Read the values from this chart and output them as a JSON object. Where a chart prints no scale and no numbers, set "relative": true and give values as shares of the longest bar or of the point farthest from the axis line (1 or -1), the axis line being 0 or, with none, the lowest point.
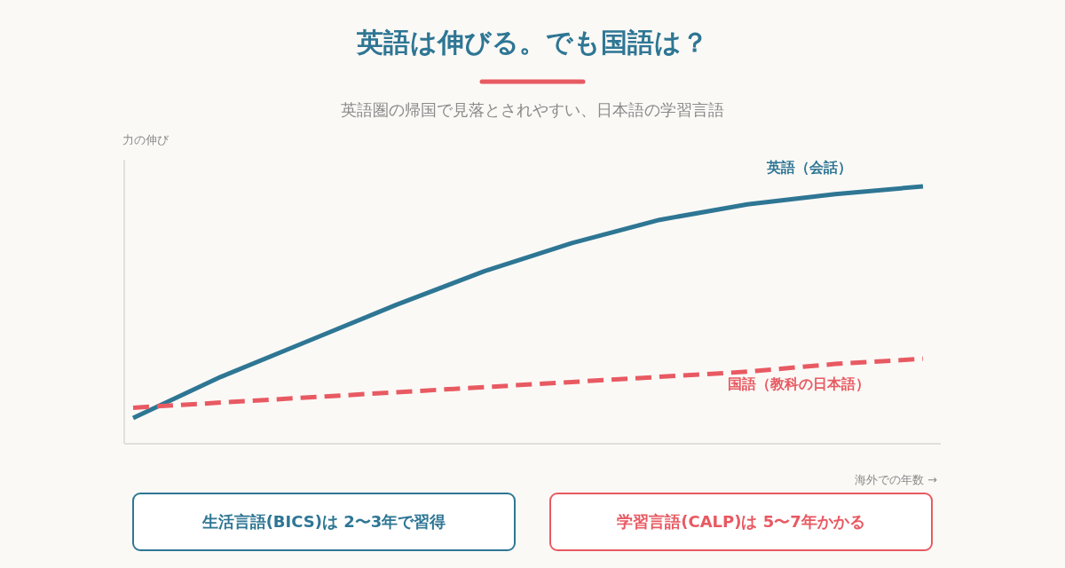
{
  "chart_data": {
    "type": "line",
    "title": "英語は伸びる。でも国語は？",
    "subtitle": "英語圏の帰国で見落とされやすい、日本語の学習言語",
    "ylabel": "力の伸び",
    "xlabel": "海外での年数 →",
    "relative": true,
    "legend": false,
    "grid": false,
    "categories": [
      null,
      null,
      null,
      null,
      null,
      null,
      null,
      null,
      null,
      null
    ],
    "series": [
      {
        "name": "英語（会話）",
        "color": "#2e7694",
        "line_style": "solid",
        "values": [
          0.1,
          0.26,
          0.4,
          0.54,
          0.67,
          0.78,
          0.87,
          0.93,
          0.97,
          1.0
        ]
      },
      {
        "name": "国語（教科の日本語）",
        "color": "#e85a62",
        "line_style": "dashed",
        "values": [
          0.14,
          0.16,
          0.18,
          0.2,
          0.22,
          0.24,
          0.26,
          0.28,
          0.31,
          0.33
        ]
      }
    ],
    "annotations": [
      "生活言語(BICS)は 2〜3年で習得",
      "学習言語(CALP)は 5〜7年かかる"
    ]
  }
}
